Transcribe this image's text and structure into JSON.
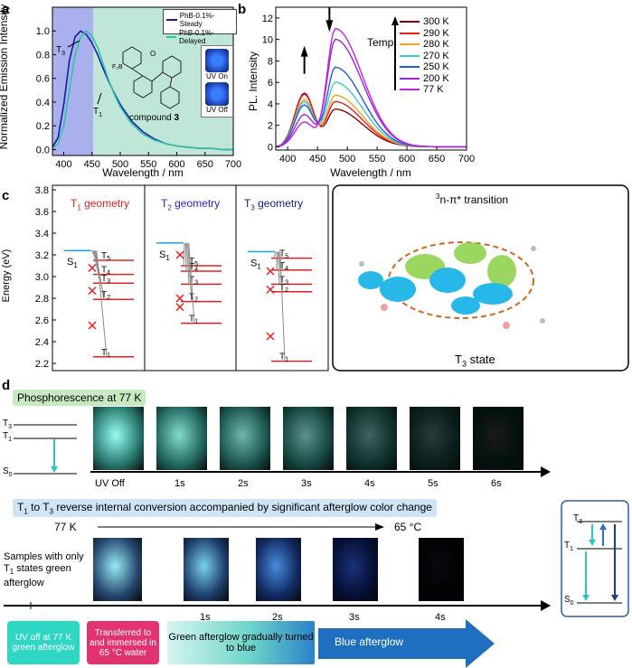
{
  "panel_a": {
    "letter": "a",
    "ylabel": "Normalized Emission Intensity",
    "xlabel": "Wavelength / nm",
    "legend_steady": "PhB-0.1%-Steady",
    "legend_delayed": "PhB-0.1%-Delayed",
    "t3_label": "T3",
    "t1_label": "T1",
    "compound_prefix": "compound ",
    "compound_num": "3",
    "uv_on": "UV On",
    "uv_off": "UV Off",
    "colors": {
      "steady": "#1a1aa8",
      "delayed": "#2ec4a6",
      "shade_blue": "#aab0ee",
      "shade_green": "#bfe6d6"
    },
    "chart_data": {
      "type": "line",
      "xlim": [
        380,
        700
      ],
      "ylim": [
        -0.05,
        1.2
      ],
      "xticks": [
        400,
        450,
        500,
        550,
        600,
        650,
        700
      ],
      "yticks": [
        0.0,
        0.2,
        0.4,
        0.6,
        0.8,
        1.0
      ],
      "series": [
        {
          "name": "PhB-0.1%-Steady",
          "x": [
            380,
            390,
            400,
            410,
            420,
            430,
            440,
            450,
            460,
            470,
            480,
            490,
            500,
            520,
            540,
            560,
            580,
            600,
            620,
            640,
            660,
            680,
            700
          ],
          "y": [
            0.02,
            0.1,
            0.38,
            0.75,
            0.95,
            1.0,
            0.97,
            0.9,
            0.8,
            0.68,
            0.57,
            0.47,
            0.38,
            0.24,
            0.15,
            0.09,
            0.05,
            0.03,
            0.02,
            0.01,
            0.01,
            0.0,
            0.0
          ]
        },
        {
          "name": "PhB-0.1%-Delayed",
          "x": [
            380,
            390,
            400,
            410,
            420,
            430,
            440,
            450,
            460,
            470,
            480,
            490,
            500,
            520,
            540,
            560,
            580,
            600,
            620,
            640,
            660,
            680,
            700
          ],
          "y": [
            0.01,
            0.05,
            0.2,
            0.5,
            0.8,
            0.95,
            1.0,
            0.96,
            0.86,
            0.72,
            0.58,
            0.46,
            0.36,
            0.22,
            0.13,
            0.08,
            0.05,
            0.03,
            0.02,
            0.01,
            0.01,
            0.0,
            0.0
          ]
        }
      ]
    }
  },
  "panel_b": {
    "letter": "b",
    "ylabel": "PL. Intensity",
    "xlabel": "Wavelength / nm",
    "temp_label": "Temp.",
    "chart_data": {
      "type": "line",
      "xlim": [
        380,
        700
      ],
      "ylim": [
        -0.3,
        13
      ],
      "xticks": [
        400,
        450,
        500,
        550,
        600,
        650,
        700
      ],
      "yticks": [
        0,
        2,
        4,
        6,
        8,
        10,
        12
      ],
      "series": [
        {
          "name": "300 K",
          "color": "#8b0000",
          "peakA": 5.0,
          "peakB": 3.5
        },
        {
          "name": "290 K",
          "color": "#e32020",
          "peakA": 4.9,
          "peakB": 4.2
        },
        {
          "name": "280 K",
          "color": "#f5a020",
          "peakA": 4.4,
          "peakB": 4.8
        },
        {
          "name": "270 K",
          "color": "#3cc9d6",
          "peakA": 4.2,
          "peakB": 6.0
        },
        {
          "name": "250 K",
          "color": "#1f5fcf",
          "peakA": 3.9,
          "peakB": 7.4
        },
        {
          "name": "200 K",
          "color": "#9b26d9",
          "peakA": 3.0,
          "peakB": 10.0
        },
        {
          "name": "77   K",
          "color": "#c323e0",
          "peakA": 2.3,
          "peakB": 11.0
        }
      ]
    }
  },
  "panel_c": {
    "letter": "c",
    "ylabel": "Energy (eV)",
    "yticks": [
      "3.8",
      "3.6",
      "3.4",
      "3.2",
      "3.0",
      "2.8",
      "2.6",
      "2.4",
      "2.2"
    ],
    "col1_title": "T",
    "col1_sub": "1",
    "col1_rest": " geometry",
    "col2_title": "T",
    "col2_sub": "2",
    "col2_rest": " geometry",
    "col3_title": "T",
    "col3_sub": "3",
    "col3_rest": " geometry",
    "s1": "S",
    "s1_sub": "1",
    "t_prefix": "T",
    "t_subs": [
      "5",
      "4",
      "3",
      "2",
      "1"
    ],
    "transition_sup": "3",
    "transition_text": "n-π* transition",
    "t3_state": "T",
    "t3_state_sub": "3",
    "t3_state_rest": " state"
  },
  "panel_d": {
    "letter": "d",
    "phos_banner": "Phosphorescence at 77 K",
    "t3": "T3",
    "t1": "T1",
    "s0": "S0",
    "time_labels_1": [
      "UV Off",
      "1s",
      "2s",
      "3s",
      "4s",
      "5s",
      "6s"
    ],
    "rc_banner": "T1 to T3 reverse internal conversion accompanied by significant afterglow color change",
    "temp_start": "77 K",
    "temp_end": "65 °C",
    "samples_note": "Samples with only T1 states green afterglow",
    "time_labels_2": [
      "1s",
      "2s",
      "3s",
      "4s"
    ],
    "box1": "UV off at 77 K green afterglow",
    "box2": "Transferred to and immersed in 65 °C water",
    "box3": "Green afterglow gradually turned to blue",
    "box4": "Blue afterglow"
  }
}
